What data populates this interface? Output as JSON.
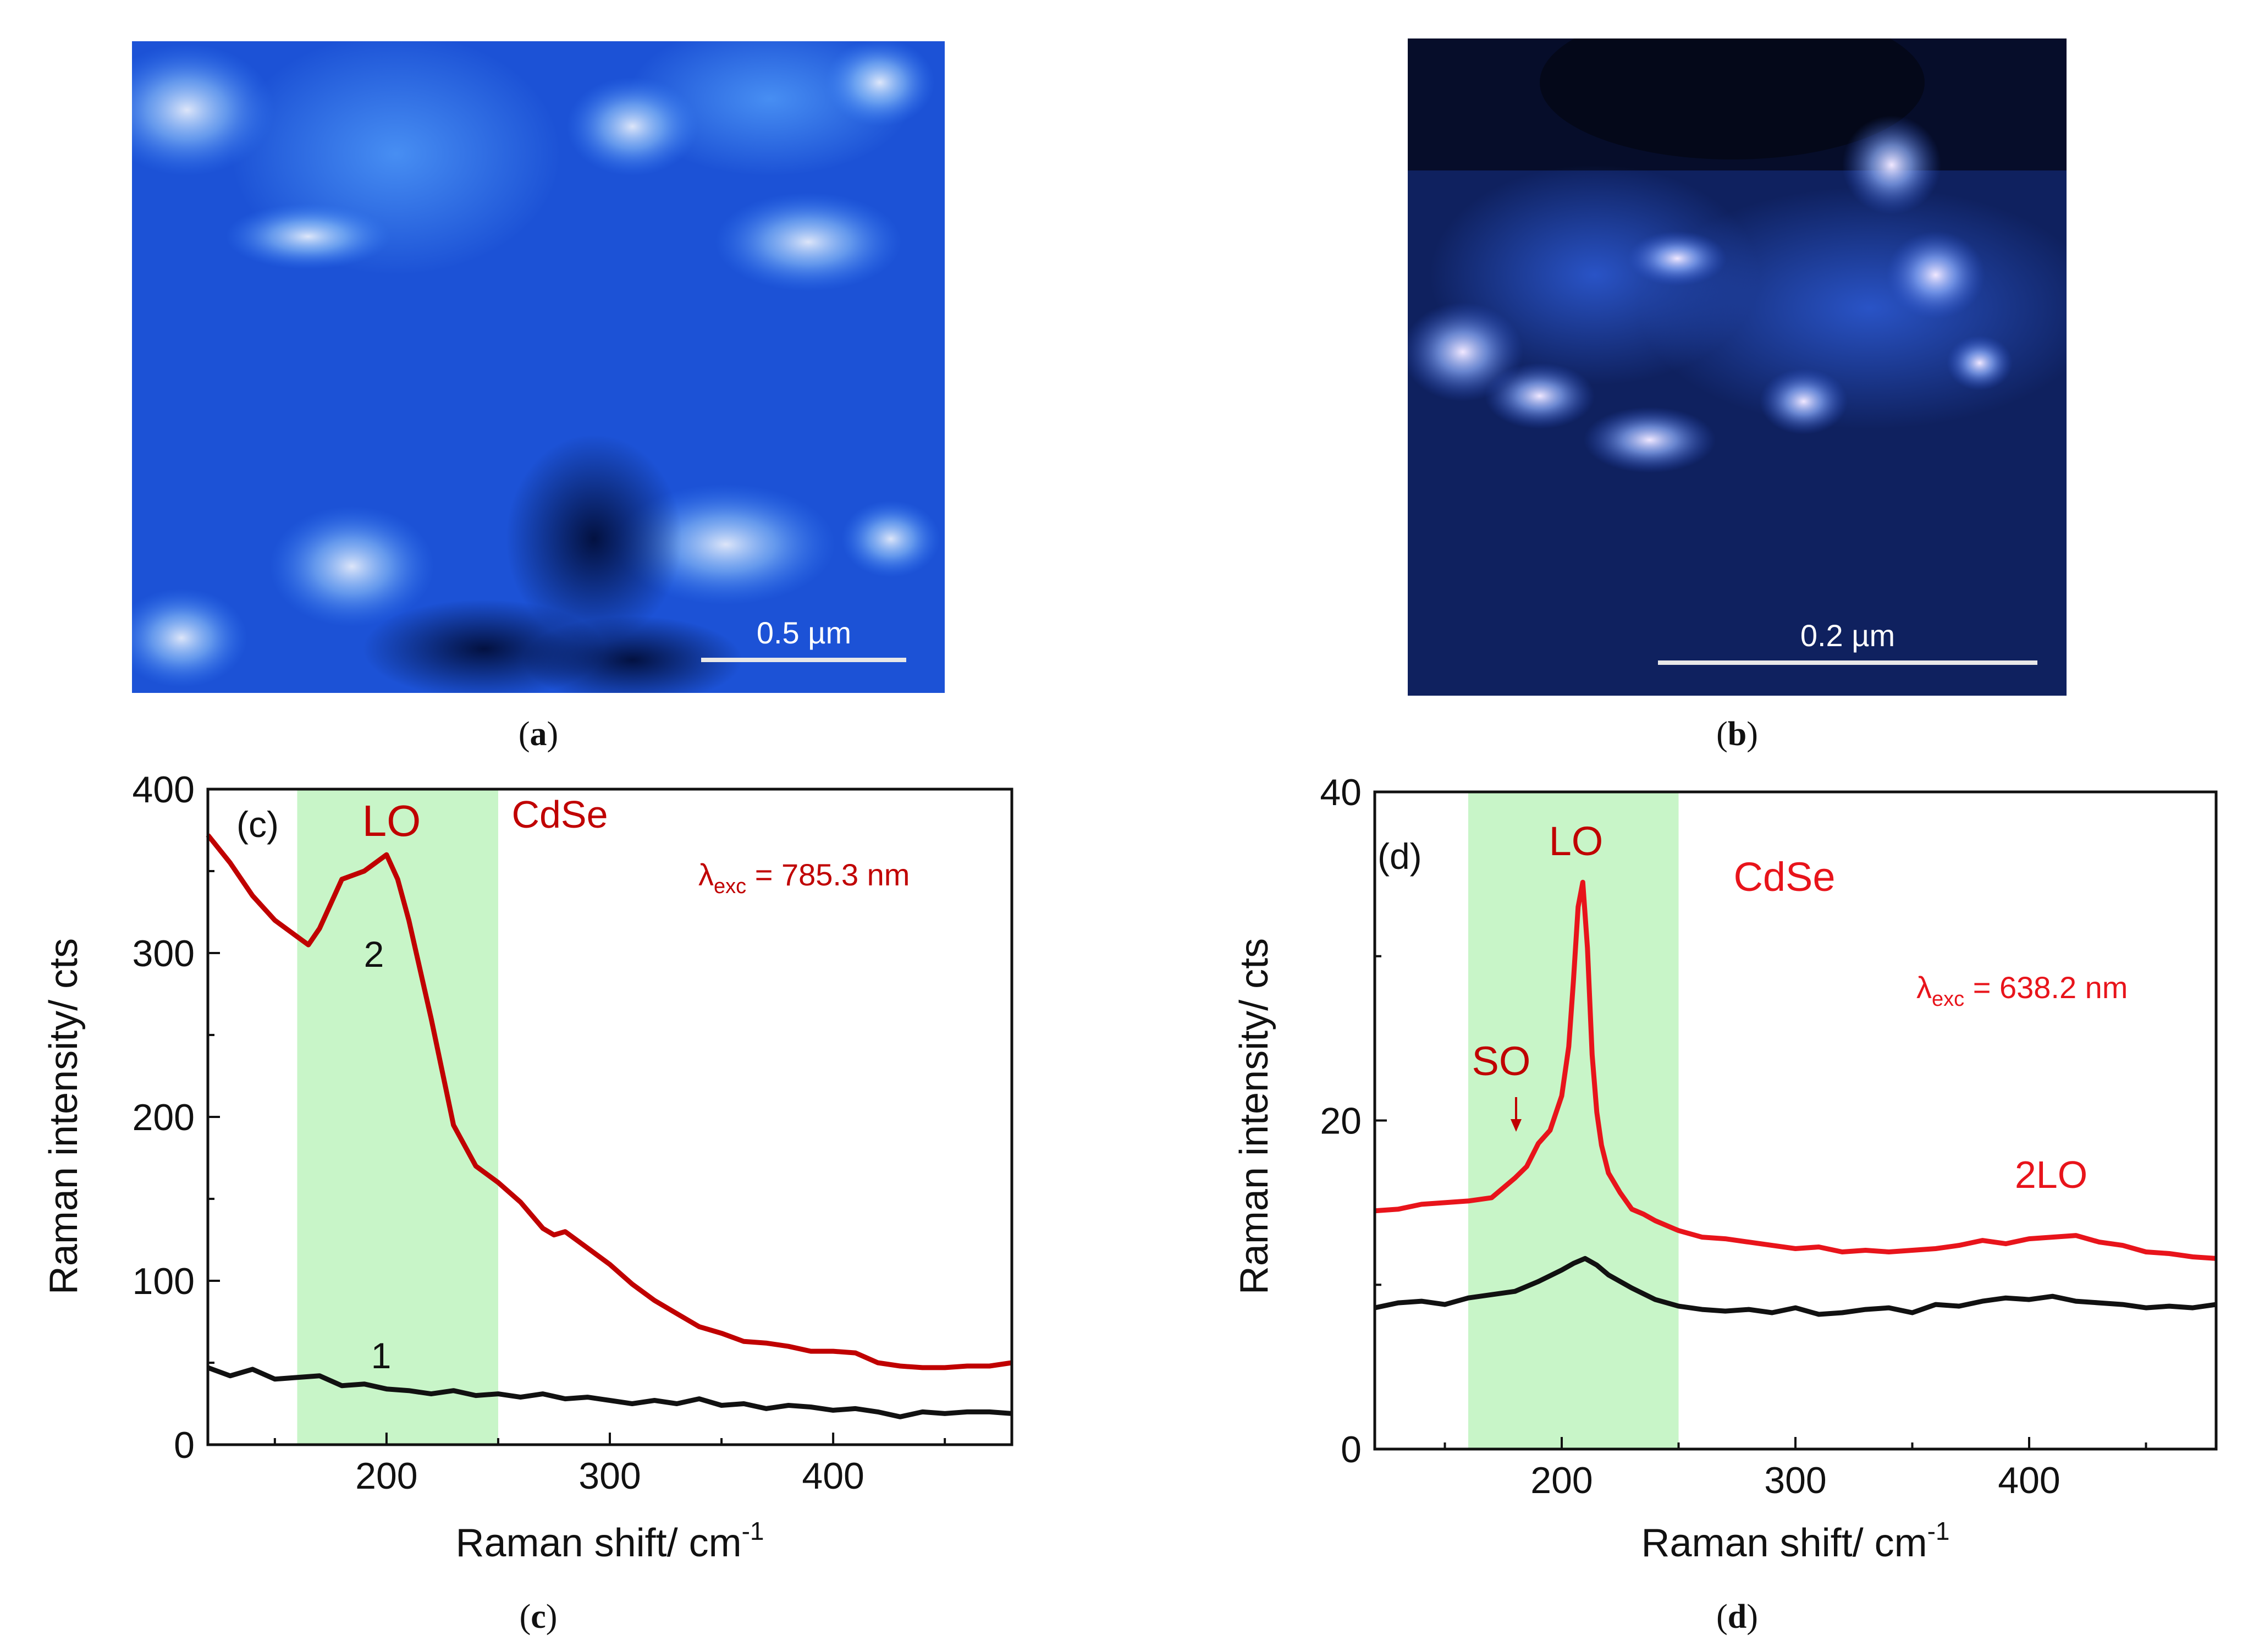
{
  "colors": {
    "red_dark": "#c00000",
    "red": "#e8141b",
    "black": "#111111",
    "band": "#c8f5c8",
    "map_a_base": "#1a4fd0",
    "map_b_base": "#0d1e5a"
  },
  "panels": {
    "a": {
      "caption_open": "(",
      "caption_letter": "a",
      "caption_close": ")",
      "scalebar": "0.5 µm"
    },
    "b": {
      "caption_open": "(",
      "caption_letter": "b",
      "caption_close": ")",
      "scalebar": "0.2 µm"
    },
    "c": {
      "caption_open": "(",
      "caption_letter": "c",
      "caption_close": ")"
    },
    "d": {
      "caption_open": "(",
      "caption_letter": "d",
      "caption_close": ")"
    }
  },
  "chart_data": [
    {
      "id": "c",
      "type": "line",
      "panel_label": "(c)",
      "title": "CdSe",
      "xlabel": "Raman shift/ cm",
      "xlabel_sup": "-1",
      "ylabel": "Raman intensity/ cts",
      "xlim": [
        120,
        480
      ],
      "ylim": [
        0,
        400
      ],
      "xticks": [
        200,
        300,
        400
      ],
      "yticks": [
        0,
        100,
        200,
        300,
        400
      ],
      "band": [
        160,
        250
      ],
      "annotations": {
        "LO": "LO",
        "curve2": "2",
        "curve1": "1",
        "lambda_symbol": "λ",
        "lambda_sub": "exc",
        "lambda_value": " = 785.3 nm"
      },
      "series": [
        {
          "name": "2",
          "color": "#c00000",
          "x": [
            120,
            130,
            140,
            150,
            160,
            165,
            170,
            180,
            190,
            200,
            205,
            210,
            215,
            220,
            230,
            240,
            250,
            260,
            270,
            275,
            280,
            290,
            300,
            310,
            320,
            330,
            340,
            350,
            360,
            370,
            380,
            390,
            400,
            410,
            420,
            430,
            440,
            450,
            460,
            470,
            480
          ],
          "y": [
            372,
            355,
            335,
            320,
            310,
            305,
            315,
            345,
            350,
            360,
            345,
            320,
            290,
            260,
            195,
            170,
            160,
            148,
            132,
            128,
            130,
            120,
            110,
            98,
            88,
            80,
            72,
            68,
            63,
            62,
            60,
            57,
            57,
            56,
            50,
            48,
            47,
            47,
            48,
            48,
            50
          ]
        },
        {
          "name": "1",
          "color": "#111111",
          "x": [
            120,
            130,
            140,
            150,
            160,
            170,
            180,
            190,
            200,
            210,
            220,
            230,
            240,
            250,
            260,
            270,
            280,
            290,
            300,
            310,
            320,
            330,
            340,
            350,
            360,
            370,
            380,
            390,
            400,
            410,
            420,
            430,
            440,
            450,
            460,
            470,
            480
          ],
          "y": [
            47,
            42,
            46,
            40,
            41,
            42,
            36,
            37,
            34,
            33,
            31,
            33,
            30,
            31,
            29,
            31,
            28,
            29,
            27,
            25,
            27,
            25,
            28,
            24,
            25,
            22,
            24,
            23,
            21,
            22,
            20,
            17,
            20,
            19,
            20,
            20,
            19
          ]
        }
      ]
    },
    {
      "id": "d",
      "type": "line",
      "panel_label": "(d)",
      "title": "CdSe",
      "xlabel": "Raman shift/ cm",
      "xlabel_sup": "-1",
      "ylabel": "Raman intensity/ cts",
      "xlim": [
        120,
        480
      ],
      "ylim": [
        0,
        40
      ],
      "xticks": [
        200,
        300,
        400
      ],
      "yticks": [
        0,
        20,
        40
      ],
      "band": [
        160,
        250
      ],
      "annotations": {
        "LO": "LO",
        "SO": "SO",
        "twoLO": "2LO",
        "lambda_symbol": "λ",
        "lambda_sub": "exc",
        "lambda_value": " = 638.2 nm"
      },
      "series": [
        {
          "name": "upper",
          "color": "#e8141b",
          "x": [
            120,
            130,
            140,
            150,
            160,
            170,
            180,
            185,
            190,
            195,
            200,
            203,
            205,
            207,
            209,
            211,
            213,
            215,
            217,
            220,
            225,
            230,
            235,
            240,
            250,
            260,
            270,
            280,
            290,
            300,
            310,
            320,
            330,
            340,
            350,
            360,
            370,
            380,
            390,
            400,
            410,
            420,
            430,
            440,
            450,
            460,
            470,
            480
          ],
          "y": [
            14.5,
            14.6,
            14.9,
            15.0,
            15.1,
            15.3,
            16.5,
            17.2,
            18.6,
            19.4,
            21.5,
            24.5,
            28.5,
            33.0,
            34.5,
            30.5,
            24.0,
            20.5,
            18.5,
            16.8,
            15.6,
            14.6,
            14.3,
            13.9,
            13.3,
            12.9,
            12.8,
            12.6,
            12.4,
            12.2,
            12.3,
            12.0,
            12.1,
            12.0,
            12.1,
            12.2,
            12.4,
            12.7,
            12.5,
            12.8,
            12.9,
            13.0,
            12.6,
            12.4,
            12.0,
            11.9,
            11.7,
            11.6
          ]
        },
        {
          "name": "lower",
          "color": "#111111",
          "x": [
            120,
            130,
            140,
            150,
            160,
            170,
            180,
            190,
            200,
            205,
            210,
            215,
            220,
            230,
            240,
            250,
            260,
            270,
            280,
            290,
            300,
            310,
            320,
            330,
            340,
            350,
            360,
            370,
            380,
            390,
            400,
            410,
            420,
            430,
            440,
            450,
            460,
            470,
            480
          ],
          "y": [
            8.6,
            8.9,
            9.0,
            8.8,
            9.2,
            9.4,
            9.6,
            10.2,
            10.9,
            11.3,
            11.6,
            11.2,
            10.6,
            9.8,
            9.1,
            8.7,
            8.5,
            8.4,
            8.5,
            8.3,
            8.6,
            8.2,
            8.3,
            8.5,
            8.6,
            8.3,
            8.8,
            8.7,
            9.0,
            9.2,
            9.1,
            9.3,
            9.0,
            8.9,
            8.8,
            8.6,
            8.7,
            8.6,
            8.8
          ]
        }
      ]
    }
  ]
}
